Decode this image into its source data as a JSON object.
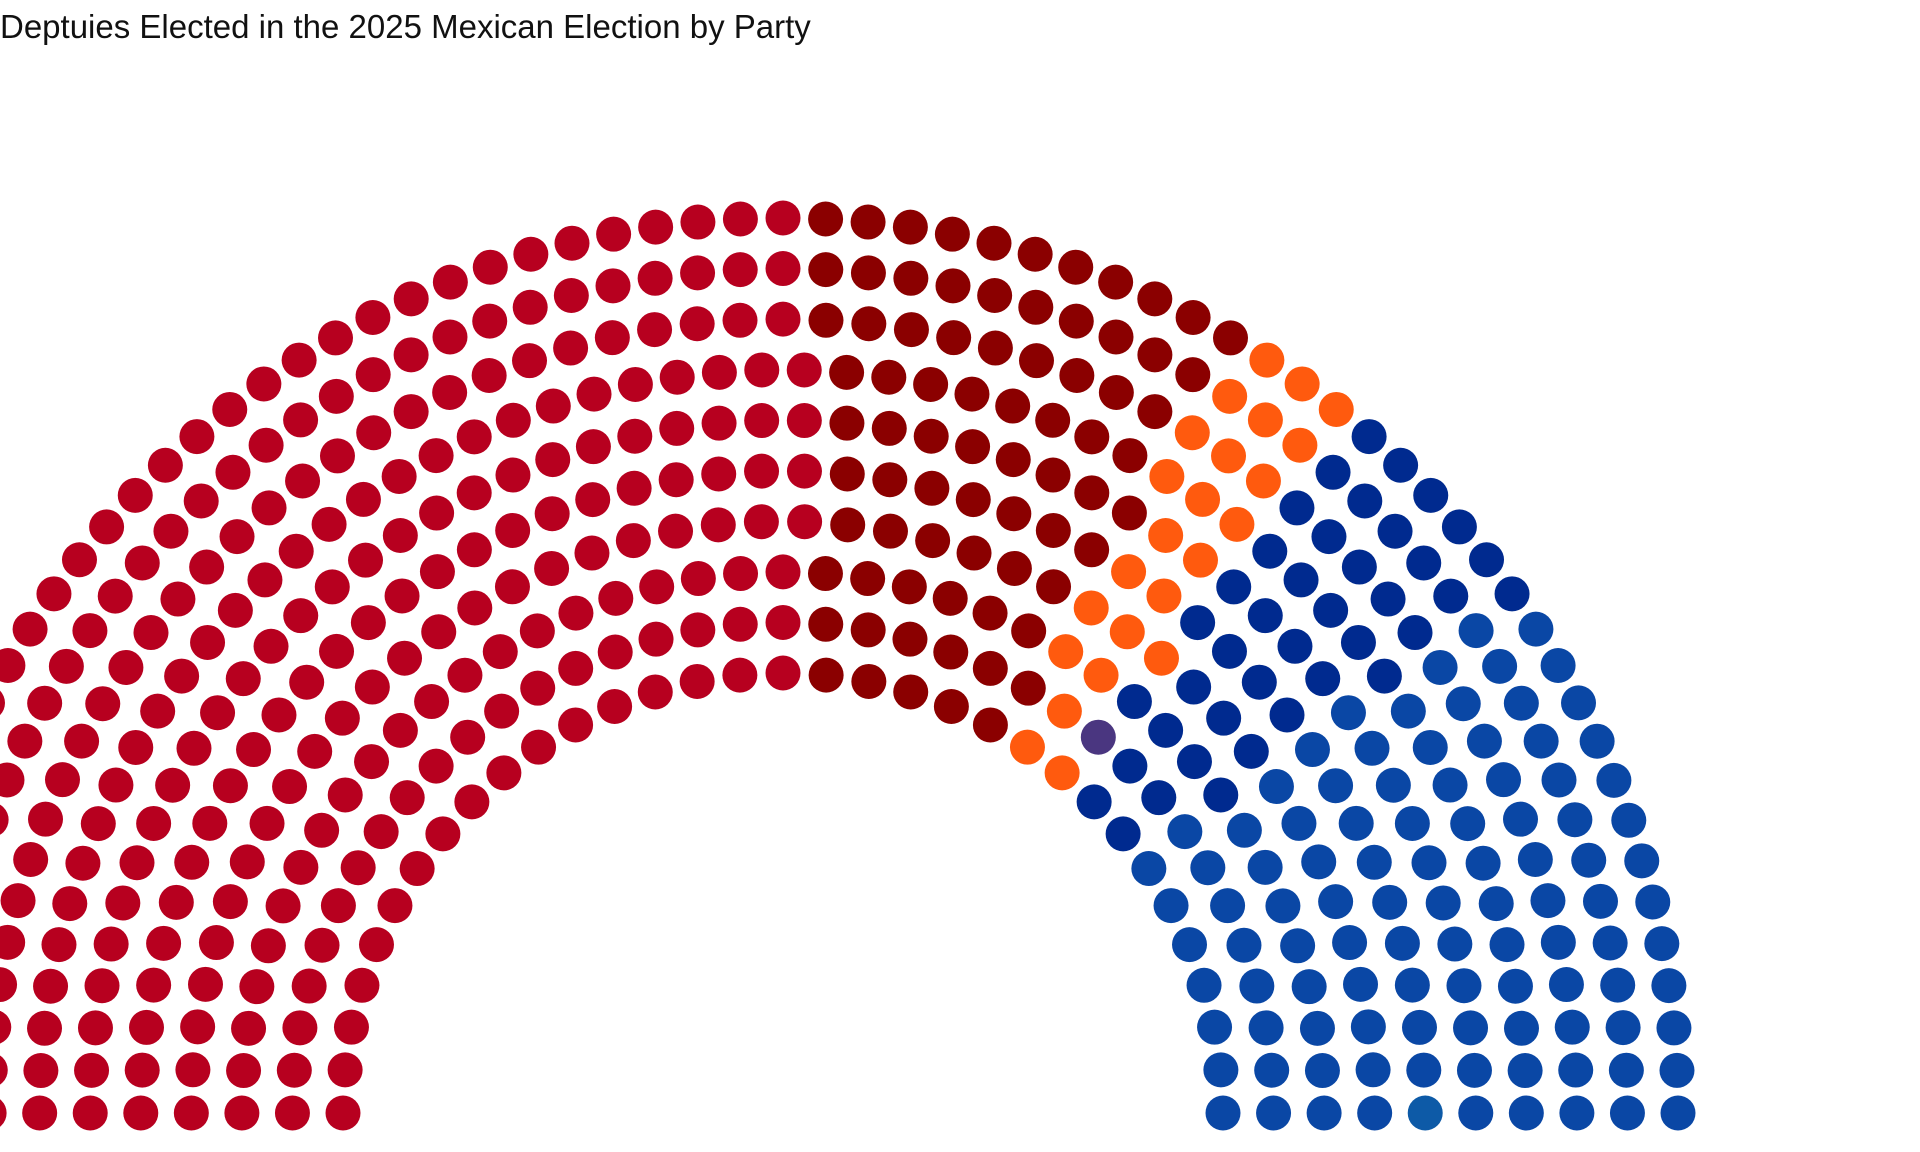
{
  "chart_data": {
    "type": "parliament",
    "title": "Deptuies Elected in the 2025 Mexican Election by Party",
    "total_seats": 500,
    "rows": 10,
    "series": [
      {
        "value": 257,
        "color": "#b7001f"
      },
      {
        "value": 76,
        "color": "#8b0000"
      },
      {
        "value": 24,
        "color": "#ff5a0e"
      },
      {
        "value": 1,
        "color": "#4a3680"
      },
      {
        "value": 40,
        "color": "#002a8f"
      },
      {
        "value": 101,
        "color": "#0a47a5"
      },
      {
        "value": 1,
        "color": "#0d5aa7"
      }
    ],
    "grid": false,
    "legend": "none"
  }
}
